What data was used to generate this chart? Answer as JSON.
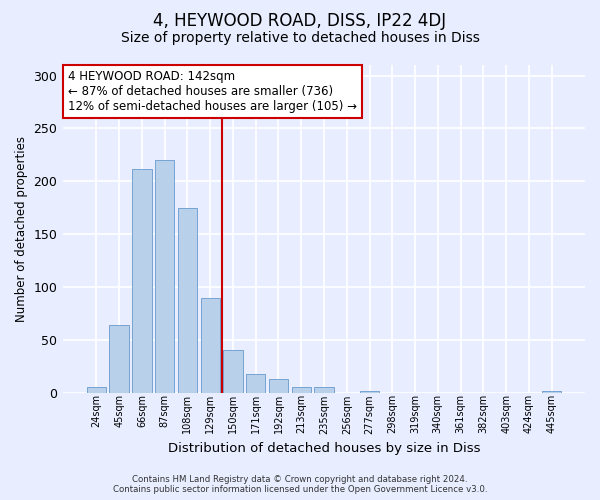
{
  "title": "4, HEYWOOD ROAD, DISS, IP22 4DJ",
  "subtitle": "Size of property relative to detached houses in Diss",
  "xlabel": "Distribution of detached houses by size in Diss",
  "ylabel": "Number of detached properties",
  "footer_line1": "Contains HM Land Registry data © Crown copyright and database right 2024.",
  "footer_line2": "Contains public sector information licensed under the Open Government Licence v3.0.",
  "annotation_line1": "4 HEYWOOD ROAD: 142sqm",
  "annotation_line2": "← 87% of detached houses are smaller (736)",
  "annotation_line3": "12% of semi-detached houses are larger (105) →",
  "bar_categories": [
    "24sqm",
    "45sqm",
    "66sqm",
    "87sqm",
    "108sqm",
    "129sqm",
    "150sqm",
    "171sqm",
    "192sqm",
    "213sqm",
    "235sqm",
    "256sqm",
    "277sqm",
    "298sqm",
    "319sqm",
    "340sqm",
    "361sqm",
    "382sqm",
    "403sqm",
    "424sqm",
    "445sqm"
  ],
  "bar_values": [
    5,
    64,
    212,
    220,
    175,
    90,
    40,
    18,
    13,
    5,
    5,
    0,
    2,
    0,
    0,
    0,
    0,
    0,
    0,
    0,
    2
  ],
  "bar_color": "#b8d0ea",
  "bar_edgecolor": "#6699cc",
  "vline_x_index": 5.5,
  "vline_color": "#cc0000",
  "ylim": [
    0,
    310
  ],
  "yticks": [
    0,
    50,
    100,
    150,
    200,
    250,
    300
  ],
  "background_color": "#e8eeff",
  "plot_bg_color": "#e8eeff",
  "grid_color": "#ffffff",
  "title_fontsize": 12,
  "subtitle_fontsize": 10,
  "annotation_box_edgecolor": "#cc0000",
  "annotation_box_facecolor": "#ffffff",
  "annotation_fontsize": 8.5
}
